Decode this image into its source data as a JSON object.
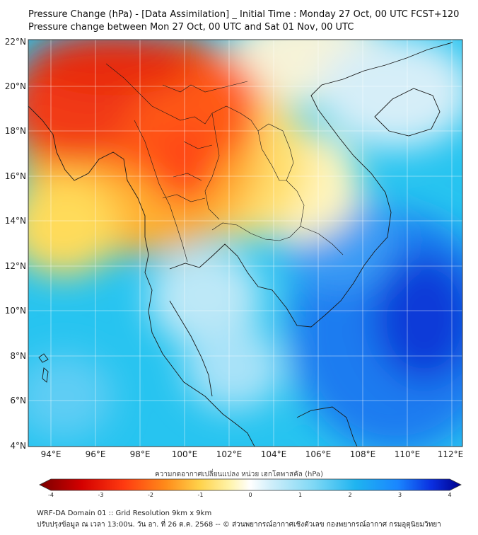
{
  "title_line1": "Pressure Change (hPa) - [Data Assimilation] _ Initial Time : Monday 27 Oct, 00 UTC FCST+120",
  "title_line2": "Pressure change between Mon 27 Oct, 00 UTC and Sat 01 Nov, 00 UTC",
  "lat_labels": [
    "22°N",
    "20°N",
    "18°N",
    "16°N",
    "14°N",
    "12°N",
    "10°N",
    "8°N",
    "6°N",
    "4°N"
  ],
  "lon_labels": [
    "94°E",
    "96°E",
    "98°E",
    "100°E",
    "102°E",
    "104°E",
    "106°E",
    "108°E",
    "110°E",
    "112°E"
  ],
  "colorbar": {
    "label": "ความกดอากาศเปลี่ยนแปลง หน่วย เฮกโตพาสคัล (hPa)",
    "min": -4,
    "max": 4,
    "ticks": [
      "-4",
      "-3",
      "-2",
      "-1",
      "0",
      "1",
      "2",
      "3",
      "4"
    ],
    "colors": [
      "#7a0000",
      "#d40000",
      "#ff3a10",
      "#ff8c1a",
      "#ffd24a",
      "#fff3a8",
      "#ffffff",
      "#cfeefa",
      "#7fd8f5",
      "#1fb4f0",
      "#1a86ff",
      "#0a2fe0",
      "#00008c"
    ]
  },
  "footer_line1": "WRF-DA Domain 01 :: Grid Resolution 9km x 9km",
  "footer_line2": "ปรับปรุงข้อมูล ณ เวลา 13:00น. วัน อา. ที่ 26 ต.ค. 2568 -- © ส่วนพยากรณ์อากาศเชิงตัวเลข กองพยากรณ์อากาศ กรมอุตุนิยมวิทยา"
}
